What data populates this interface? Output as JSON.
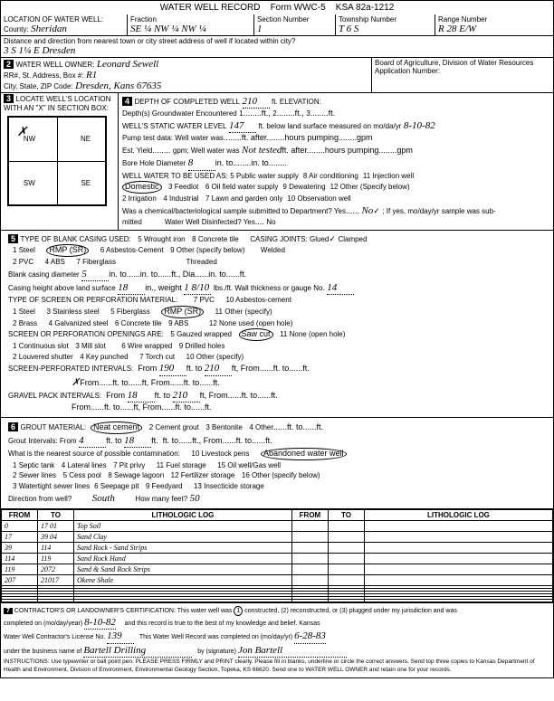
{
  "header": {
    "title": "WATER WELL RECORD",
    "form": "Form WWC-5",
    "ksa": "KSA 82a-1212"
  },
  "location": {
    "county_label": "County:",
    "county": "Sheridan",
    "fraction_label": "Fraction",
    "fraction": "SE ¼  NW ¼  NW ¼",
    "section_label": "Section Number",
    "section": "1",
    "township_label": "Township Number",
    "township": "T  6  S",
    "range_label": "Range Number",
    "range": "R  28  E/W",
    "distance_label": "Distance and direction from nearest town or city street address of well if located within city?",
    "distance": "3 S   1¼ E   Dresden"
  },
  "owner": {
    "num": "2",
    "label": "WATER WELL OWNER:",
    "name": "Leonard Sewell",
    "rr_label": "RR#, St. Address, Box #:",
    "rr": "R1",
    "city_label": "City, State, ZIP Code:",
    "city": "Dresden, Kans 67635",
    "board": "Board of Agriculture, Division of Water Resources",
    "app_label": "Application Number:"
  },
  "locate": {
    "num": "3",
    "label": "LOCATE WELL'S LOCATION WITH AN \"X\" IN SECTION BOX:",
    "nw": "NW",
    "ne": "NE",
    "sw": "SW",
    "se": "SE"
  },
  "depth": {
    "num": "4",
    "depth_label": "DEPTH OF COMPLETED WELL",
    "depth": "210",
    "elev_label": "ft. ELEVATION:",
    "groundwater_label": "Depth(s) Groundwater Encountered",
    "gw1": "1",
    "gw2": "2",
    "gw3": "3",
    "static_label": "WELL'S STATIC WATER LEVEL",
    "static": "147",
    "static_after": "ft. below land surface measured on mo/da/yr",
    "static_date": "8-10-82",
    "pump_label": "Pump test data: Well water was",
    "est_label": "Est. Yield",
    "gpm": "gpm; Well water was",
    "not_tested": "Not tested",
    "bore_label": "Bore Hole Diameter",
    "bore": "8",
    "use_label": "WELL WATER TO BE USED AS:",
    "use1": "Domestic",
    "use2": "2 Irrigation",
    "use3": "3 Feedlot",
    "use4": "4 Industrial",
    "use5": "5 Public water supply",
    "use6": "6 Oil field water supply",
    "use7": "7 Lawn and garden only",
    "use8": "8 Air conditioning",
    "use9": "9 Dewatering",
    "use10": "10 Observation well",
    "use11": "11 Injection well",
    "use12": "12 Other (Specify below)",
    "bact_label": "Was a chemical/bacteriological sample submitted to Department? Yes",
    "bact_no": "No",
    "bact_after": "; If yes, mo/day/yr sample was sub-",
    "mitted": "mitted",
    "disinfect": "Water Well Disinfected? Yes",
    "disinfect_no": "No"
  },
  "casing": {
    "num": "5",
    "label": "TYPE OF BLANK CASING USED:",
    "c1": "1 Steel",
    "c2": "2 PVC",
    "c3": "RMP (SR)",
    "c4": "4 ABS",
    "c5": "5 Wrought iron",
    "c6": "6 Asbestos-Cement",
    "c7": "7 Fiberglass",
    "c8": "8 Concrete tile",
    "c9": "9 Other (specify below)",
    "joints_label": "CASING JOINTS: Glued",
    "clamped": "Clamped",
    "welded": "Welded",
    "threaded": "Threaded",
    "dia_label": "Blank casing diameter",
    "dia": "5",
    "height_label": "Casing height above land surface",
    "height": "18",
    "weight": "1 8/10",
    "thickness_label": "lbs./ft. Wall thickness or gauge No.",
    "thickness": "14",
    "screen_label": "TYPE OF SCREEN OR PERFORATION MATERIAL:",
    "s1": "1 Steel",
    "s2": "2 Brass",
    "s3": "3 Stainless steel",
    "s4": "4 Galvanized steel",
    "s5": "5 Fiberglass",
    "s6": "6 Concrete tile",
    "s7": "7 PVC",
    "s8": "RMP (SR)",
    "s9": "9 ABS",
    "s10": "10 Asbestos-cement",
    "s11": "11 Other (specify)",
    "s12": "12 None used (open hole)",
    "open_label": "SCREEN OR PERFORATION OPENINGS ARE:",
    "o1": "1 Continuous slot",
    "o2": "2 Louvered shutter",
    "o3": "3 Mill slot",
    "o4": "4 Key punched",
    "o5": "5 Gauzed wrapped",
    "o6": "6 Wire wrapped",
    "o7": "7 Torch cut",
    "o8": "Saw cut",
    "o9": "9 Drilled holes",
    "o10": "10 Other (specify)",
    "o11": "11 None (open hole)",
    "perf_label": "SCREEN-PERFORATED INTERVALS:",
    "perf_from": "190",
    "perf_to": "210",
    "gravel_label": "GRAVEL PACK INTERVALS:",
    "gravel_from": "18",
    "gravel_to": "210"
  },
  "grout": {
    "num": "6",
    "label": "GROUT MATERIAL:",
    "g1": "Neat cement",
    "g2": "2 Cement grout",
    "g3": "3 Bentonite",
    "g4": "4 Other",
    "int_label": "Grout Intervals:   From",
    "int_from": "4",
    "int_to": "18",
    "contam_label": "What is the nearest source of possible contamination:",
    "p1": "1 Septic tank",
    "p2": "2 Sewer lines",
    "p3": "3 Watertight sewer lines",
    "p4": "4 Lateral lines",
    "p5": "5 Cess pool",
    "p6": "6 Seepage pit",
    "p7": "7 Pit privy",
    "p8": "8 Sewage lagoon",
    "p9": "9 Feedyard",
    "p10": "10 Livestock pens",
    "p11": "11 Fuel storage",
    "p12": "12 Fertilizer storage",
    "p13": "13 Insecticide storage",
    "p14": "Abandoned water well",
    "p15": "15 Oil well/Gas well",
    "p16": "16 Other (specify below)",
    "dir_label": "Direction from well?",
    "dir": "South",
    "feet_label": "How many feet?",
    "feet": "50"
  },
  "log": {
    "h_from": "FROM",
    "h_to": "TO",
    "h_lith": "LITHOLOGIC LOG",
    "rows": [
      {
        "from": "0",
        "to": "17 01",
        "lith": "Top Soil"
      },
      {
        "from": "17",
        "to": "39 04",
        "lith": "Sand Clay"
      },
      {
        "from": "39",
        "to": "114",
        "lith": "Sand Rock - Sand Strips"
      },
      {
        "from": "114",
        "to": "119",
        "lith": "Sand Rock Hand"
      },
      {
        "from": "119",
        "to": "2072",
        "lith": "Sand & Sand Rock Strips"
      },
      {
        "from": "207",
        "to": "21017",
        "lith": "Okene Shale"
      }
    ]
  },
  "cert": {
    "num": "7",
    "label": "CONTRACTOR'S OR LANDOWNER'S CERTIFICATION: This water well was",
    "opts": "constructed, (2) reconstructed, or (3) plugged under my jurisdiction and was",
    "completed_label": "completed on (mo/day/year)",
    "completed": "8-10-82",
    "belief": "and this record is true to the best of my knowledge and belief. Kansas",
    "license_label": "Water Well Contractor's License No.",
    "license": "139",
    "record_label": "This Water Well Record was completed on (mo/day/yr)",
    "record_date": "6-28-83",
    "business_label": "under the business name of",
    "business": "Bartell Drilling",
    "sig_label": "by (signature)",
    "sig": "Jon Bartell",
    "instructions": "INSTRUCTIONS: Use typewriter or ball point pen. PLEASE PRESS FIRMLY and PRINT clearly. Please fill in blanks, underline or circle the correct answers. Send top three copies to Kansas Department of Health and Environment, Division of Environment, Environmental Geology Section, Topeka, KS 66620. Send one to WATER WELL OWNER and retain one for your records."
  }
}
